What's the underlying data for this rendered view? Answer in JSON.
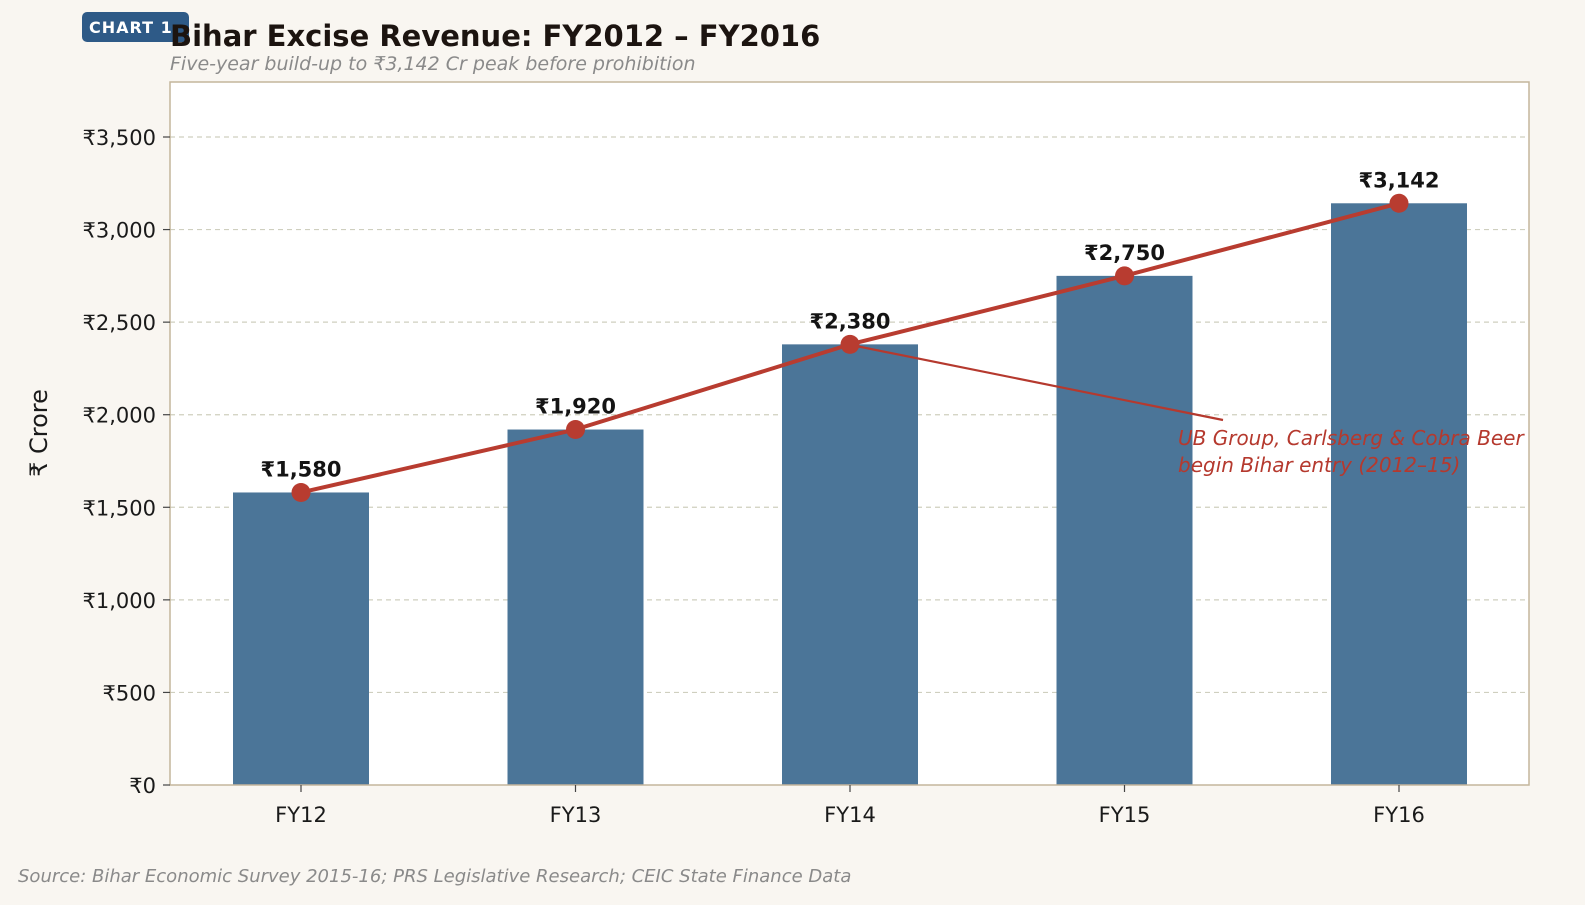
{
  "badge": "CHART 1",
  "source": "Source: Bihar Economic Survey 2015-16; PRS Legislative Research; CEIC State Finance Data",
  "colors": {
    "bar": "#4b7598",
    "line": "#b83c30",
    "grid": "#cfcfbf",
    "frame": "#c4b59c",
    "badge": "#2e5a87",
    "annotation": "#b5392e"
  },
  "chart_data": {
    "type": "bar",
    "title": "Bihar Excise Revenue: FY2012 – FY2016",
    "subtitle": "Five-year build-up to ₹3,142 Cr peak before prohibition",
    "xlabel": "",
    "ylabel": "₹ Crore",
    "ylim": [
      0,
      3800
    ],
    "grid": true,
    "categories": [
      "FY12",
      "FY13",
      "FY14",
      "FY15",
      "FY16"
    ],
    "values": [
      1580,
      1920,
      2380,
      2750,
      3142
    ],
    "value_labels": [
      "₹1,580",
      "₹1,920",
      "₹2,380",
      "₹2,750",
      "₹3,142"
    ],
    "y_ticks": [
      0,
      500,
      1000,
      1500,
      2000,
      2500,
      3000,
      3500
    ],
    "y_tick_labels": [
      "₹0",
      "₹500",
      "₹1,000",
      "₹1,500",
      "₹2,000",
      "₹2,500",
      "₹3,000",
      "₹3,500"
    ],
    "overlay_line": {
      "type": "line",
      "values": [
        1580,
        1920,
        2380,
        2750,
        3142
      ],
      "markers": true
    },
    "annotation": {
      "lines": [
        "UB Group, Carlsberg & Cobra Beer",
        "begin Bihar entry (2012–15)"
      ],
      "target_category": "FY14",
      "target_value": 2380
    }
  }
}
